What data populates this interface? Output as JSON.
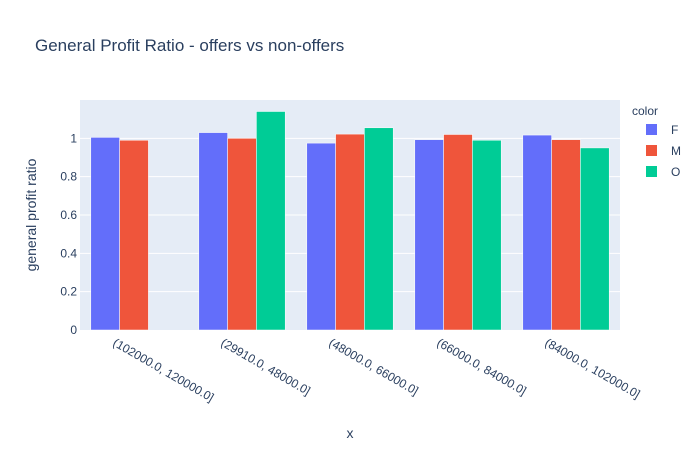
{
  "chart_data": {
    "type": "bar",
    "title": "General Profit Ratio - offers vs non-offers",
    "xlabel": "x",
    "ylabel": "general profit ratio",
    "categories": [
      "(102000.0, 120000.0]",
      "(29910.0, 48000.0]",
      "(48000.0, 66000.0]",
      "(66000.0, 84000.0]",
      "(84000.0, 102000.0]"
    ],
    "ylim": [
      0,
      1.2
    ],
    "yticks": [
      0,
      0.2,
      0.4,
      0.6,
      0.8,
      1
    ],
    "ytick_labels": [
      "0",
      "0.2",
      "0.4",
      "0.6",
      "0.8",
      "1"
    ],
    "grid": true,
    "legend": {
      "title": "color",
      "placement": "right"
    },
    "series": [
      {
        "name": "F",
        "color": "#636efa",
        "values": [
          1.005,
          1.03,
          0.975,
          0.993,
          1.017
        ]
      },
      {
        "name": "M",
        "color": "#ef553b",
        "values": [
          0.99,
          1.0,
          1.022,
          1.02,
          0.993
        ]
      },
      {
        "name": "O",
        "color": "#00cc96",
        "values": [
          null,
          1.14,
          1.055,
          0.99,
          0.95
        ]
      }
    ]
  }
}
